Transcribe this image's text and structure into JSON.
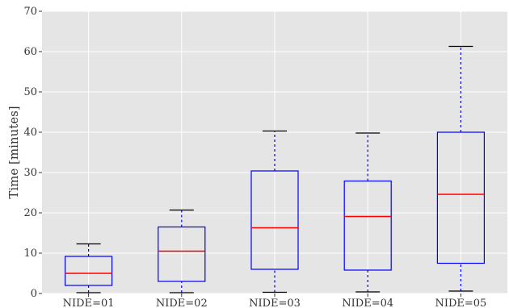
{
  "chart_data": {
    "type": "box",
    "title": "",
    "xlabel": "",
    "ylabel": "Time [minutes]",
    "ylim": [
      0,
      70
    ],
    "yticks": [
      0,
      10,
      20,
      30,
      40,
      50,
      60,
      70
    ],
    "grid": true,
    "categories": [
      "NIDE=01",
      "NIDE=02",
      "NIDE=03",
      "NIDE=04",
      "NIDE=05"
    ],
    "boxes": [
      {
        "min": 0.2,
        "q1": 2.0,
        "median": 5.0,
        "q3": 9.2,
        "max": 12.3
      },
      {
        "min": 0.2,
        "q1": 3.0,
        "median": 10.5,
        "q3": 16.5,
        "max": 20.7
      },
      {
        "min": 0.3,
        "q1": 6.0,
        "median": 16.3,
        "q3": 30.4,
        "max": 40.3
      },
      {
        "min": 0.4,
        "q1": 5.8,
        "median": 19.1,
        "q3": 27.9,
        "max": 39.8
      },
      {
        "min": 0.6,
        "q1": 7.5,
        "median": 24.6,
        "q3": 40.0,
        "max": 61.3
      }
    ],
    "colors": {
      "box": "#0000ff",
      "median": "#ff0000",
      "whisker": "#0000ff",
      "cap": "#000000",
      "background": "#e5e5e5",
      "grid": "#ffffff"
    }
  }
}
